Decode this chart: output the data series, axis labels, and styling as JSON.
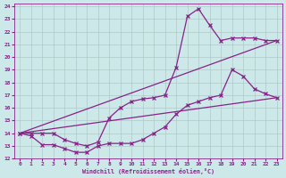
{
  "xlabel": "Windchill (Refroidissement éolien,°C)",
  "background_color": "#cce8e8",
  "line_color": "#882288",
  "grid_color": "#b0c8c8",
  "xlim": [
    -0.5,
    23.5
  ],
  "ylim": [
    12,
    24.2
  ],
  "yticks": [
    12,
    13,
    14,
    15,
    16,
    17,
    18,
    19,
    20,
    21,
    22,
    23,
    24
  ],
  "xticks": [
    0,
    1,
    2,
    3,
    4,
    5,
    6,
    7,
    8,
    9,
    10,
    11,
    12,
    13,
    14,
    15,
    16,
    17,
    18,
    19,
    20,
    21,
    22,
    23
  ],
  "curve1_x": [
    0,
    1,
    2,
    3,
    4,
    5,
    6,
    7,
    8,
    9,
    10,
    11,
    12,
    13,
    14,
    15,
    16,
    17,
    18,
    19,
    20,
    21,
    22,
    23
  ],
  "curve1_y": [
    14.0,
    13.8,
    13.1,
    13.1,
    12.8,
    12.5,
    12.5,
    13.0,
    13.2,
    13.2,
    13.2,
    13.5,
    14.0,
    14.5,
    15.5,
    16.2,
    16.5,
    16.8,
    17.0,
    19.0,
    18.5,
    17.5,
    17.1,
    16.8
  ],
  "curve2_x": [
    0,
    1,
    2,
    3,
    4,
    5,
    6,
    7,
    8,
    9,
    10,
    11,
    12,
    13,
    14,
    15,
    16,
    17,
    18,
    19,
    20,
    21,
    22,
    23
  ],
  "curve2_y": [
    14.0,
    14.0,
    14.0,
    14.0,
    13.5,
    13.2,
    13.0,
    13.3,
    15.2,
    16.0,
    16.5,
    16.7,
    16.8,
    17.0,
    19.2,
    23.2,
    23.8,
    22.5,
    21.3,
    21.5,
    21.5,
    21.5,
    21.3,
    21.3
  ],
  "line1_x": [
    0,
    23
  ],
  "line1_y": [
    14.0,
    16.8
  ],
  "line2_x": [
    0,
    23
  ],
  "line2_y": [
    14.0,
    21.3
  ]
}
